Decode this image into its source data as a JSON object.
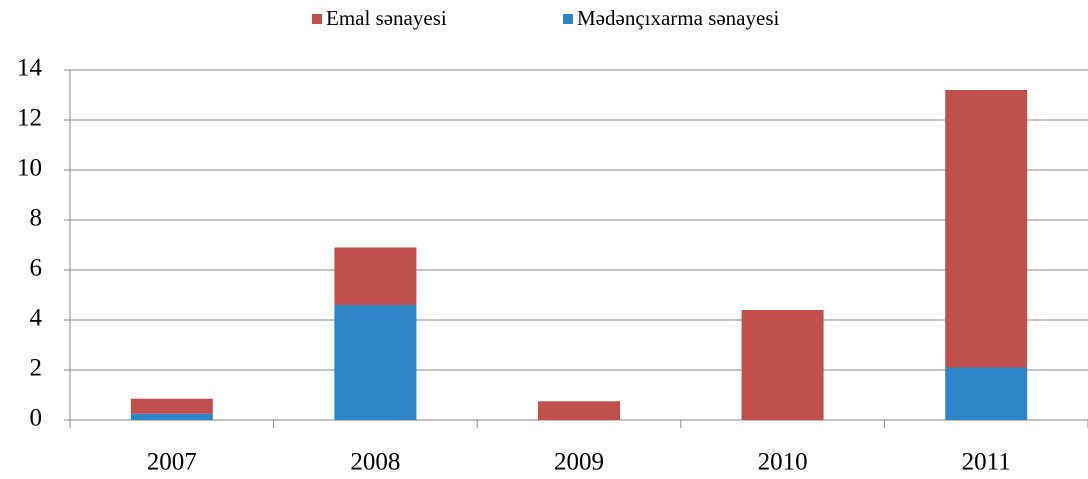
{
  "chart_data": {
    "type": "stacked_bar",
    "categories": [
      "2007",
      "2008",
      "2009",
      "2010",
      "2011"
    ],
    "series": [
      {
        "name": "Emal sənayesi",
        "color": "#c0504d",
        "values": [
          0.6,
          2.3,
          0.75,
          4.4,
          11.1
        ]
      },
      {
        "name": "Mədənçıxarma sənayesi",
        "color": "#2e86c8",
        "values": [
          0.25,
          4.6,
          0,
          0,
          2.1
        ]
      }
    ],
    "ylim": [
      0,
      14
    ],
    "yticks": [
      0,
      2,
      4,
      6,
      8,
      10,
      12,
      14
    ],
    "grid": true,
    "legend": "top"
  }
}
